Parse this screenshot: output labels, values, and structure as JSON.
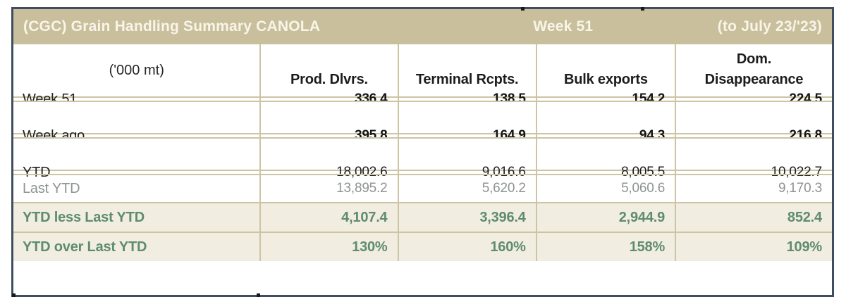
{
  "title_bar": {
    "title": "(CGC) Grain Handling Summary CANOLA",
    "week": "Week 51",
    "period": "(to July 23/'23)"
  },
  "columns": {
    "unit_label": "('000 mt)",
    "headers": [
      "Prod. Dlvrs.",
      "Terminal Rcpts.",
      "Bulk exports",
      "Dom.\nDisappearance"
    ]
  },
  "rows": [
    {
      "label": "Week 51",
      "values": [
        "336.4",
        "138.5",
        "154.2",
        "224.5"
      ],
      "style": "bold",
      "gap_after": true
    },
    {
      "label": "Week ago",
      "values": [
        "395.8",
        "164.9",
        "94.3",
        "216.8"
      ],
      "style": "bold",
      "gap_after": true
    },
    {
      "label": "YTD",
      "values": [
        "18,002.6",
        "9,016.6",
        "8,005.5",
        "10,022.7"
      ],
      "style": "plain",
      "gap_after": false
    },
    {
      "label": "Last YTD",
      "values": [
        "13,895.2",
        "5,620.2",
        "5,060.6",
        "9,170.3"
      ],
      "style": "muted",
      "gap_after": false
    },
    {
      "label": "YTD less Last YTD",
      "values": [
        "4,107.4",
        "3,396.4",
        "2,944.9",
        "852.4"
      ],
      "style": "accent",
      "gap_after": false
    },
    {
      "label": "YTD over Last YTD",
      "values": [
        "130%",
        "160%",
        "158%",
        "109%"
      ],
      "style": "accent",
      "gap_after": false
    }
  ],
  "colors": {
    "header_bg": "#c9bf9c",
    "grid_line": "#cdc4a4",
    "outer_border": "#3e4e60",
    "accent_green": "#5e8b71",
    "accent_row_bg": "#f1eee1",
    "muted_gray": "#8f9394"
  }
}
